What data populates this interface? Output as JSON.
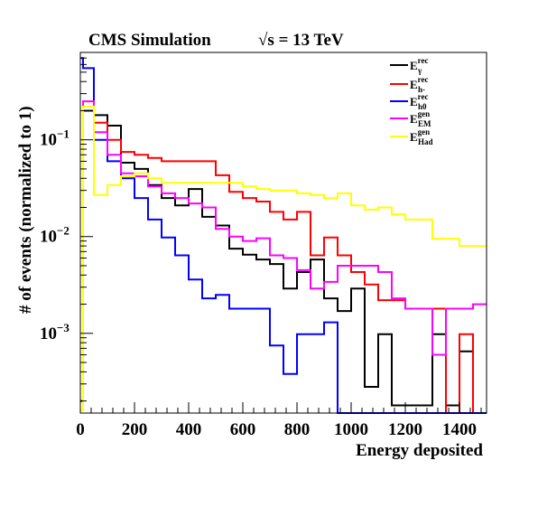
{
  "chart_data": {
    "type": "line",
    "title": "CMS Simulation",
    "energy_label": "√s = 13 TeV",
    "xlabel": "Energy deposited",
    "ylabel": "# of events (normalized to 1)",
    "xlim": [
      0,
      1500
    ],
    "ylim": [
      0.00015,
      0.8
    ],
    "yscale": "log",
    "grid": false,
    "legend_position": "top-right",
    "x_ticks": [
      0,
      200,
      400,
      600,
      800,
      1000,
      1200,
      1400
    ],
    "x_tick_labels": [
      "0",
      "200",
      "400",
      "600",
      "800",
      "1000",
      "1200",
      "1400"
    ],
    "y_tick_labels": [
      {
        "base": "10",
        "exp": "−1",
        "value": 0.1
      },
      {
        "base": "10",
        "exp": "−2",
        "value": 0.01
      },
      {
        "base": "10",
        "exp": "−3",
        "value": 0.001
      }
    ],
    "bin_edges": [
      0,
      10,
      50,
      100,
      150,
      200,
      250,
      300,
      350,
      400,
      450,
      500,
      550,
      600,
      650,
      700,
      750,
      800,
      850,
      900,
      950,
      1000,
      1050,
      1100,
      1150,
      1200,
      1250,
      1300,
      1350,
      1400,
      1450,
      1500
    ],
    "series": [
      {
        "label_main": "E",
        "label_sup": "rec",
        "label_sub": "γ",
        "color": "#000000",
        "values": [
          0.0002,
          0.2,
          0.18,
          0.14,
          0.058,
          0.05,
          0.034,
          0.025,
          0.021,
          0.031,
          0.016,
          0.013,
          0.0075,
          0.0065,
          0.0058,
          0.0052,
          0.0029,
          0.0043,
          0.0058,
          0.0023,
          0.0017,
          0.0029,
          0.00028,
          0.00098,
          0.00018,
          0.00018,
          0.00018,
          0.00098,
          0.00018,
          0.00065,
          0.00015
        ]
      },
      {
        "label_main": "E",
        "label_sup": "rec",
        "label_sub": "h-",
        "color": "#ff0000",
        "values": [
          0.00016,
          0.22,
          0.15,
          0.1,
          0.075,
          0.07,
          0.065,
          0.06,
          0.06,
          0.06,
          0.06,
          0.043,
          0.029,
          0.025,
          0.023,
          0.018,
          0.015,
          0.018,
          0.0064,
          0.0098,
          0.0064,
          0.0043,
          0.0032,
          0.0022,
          0.0022,
          0.0018,
          0.0018,
          0.0018,
          0.00015,
          0.00098,
          0.00015
        ]
      },
      {
        "label_main": "E",
        "label_sup": "rec",
        "label_sub": "h0",
        "color": "#0000ff",
        "values": [
          0.7,
          0.55,
          0.1,
          0.06,
          0.04,
          0.025,
          0.015,
          0.0098,
          0.0064,
          0.0036,
          0.0023,
          0.0025,
          0.0018,
          0.0018,
          0.0018,
          0.00075,
          0.00038,
          0.00098,
          0.00098,
          0.0013,
          0.00015,
          0.00015,
          0.00015,
          0.00015,
          0.00015,
          0.00015,
          0.00015,
          0.00015,
          0.00015,
          0.00015,
          0.00015
        ]
      },
      {
        "label_main": "E",
        "label_sup": "gen",
        "label_sub": "EM",
        "color": "#ff00ff",
        "values": [
          0.00016,
          0.25,
          0.12,
          0.07,
          0.045,
          0.042,
          0.033,
          0.028,
          0.025,
          0.022,
          0.02,
          0.012,
          0.01,
          0.009,
          0.0096,
          0.0064,
          0.006,
          0.0045,
          0.0029,
          0.0034,
          0.005,
          0.005,
          0.005,
          0.0043,
          0.0023,
          0.0018,
          0.0018,
          0.0006,
          0.0018,
          0.0018,
          0.002
        ]
      },
      {
        "label_main": "E",
        "label_sup": "gen",
        "label_sub": "Had",
        "color": "#ffff00",
        "values": [
          0.00016,
          0.22,
          0.027,
          0.034,
          0.042,
          0.045,
          0.04,
          0.036,
          0.036,
          0.036,
          0.036,
          0.036,
          0.036,
          0.033,
          0.031,
          0.03,
          0.03,
          0.028,
          0.027,
          0.025,
          0.028,
          0.021,
          0.019,
          0.02,
          0.017,
          0.015,
          0.015,
          0.0095,
          0.0095,
          0.008,
          0.008
        ]
      }
    ]
  }
}
